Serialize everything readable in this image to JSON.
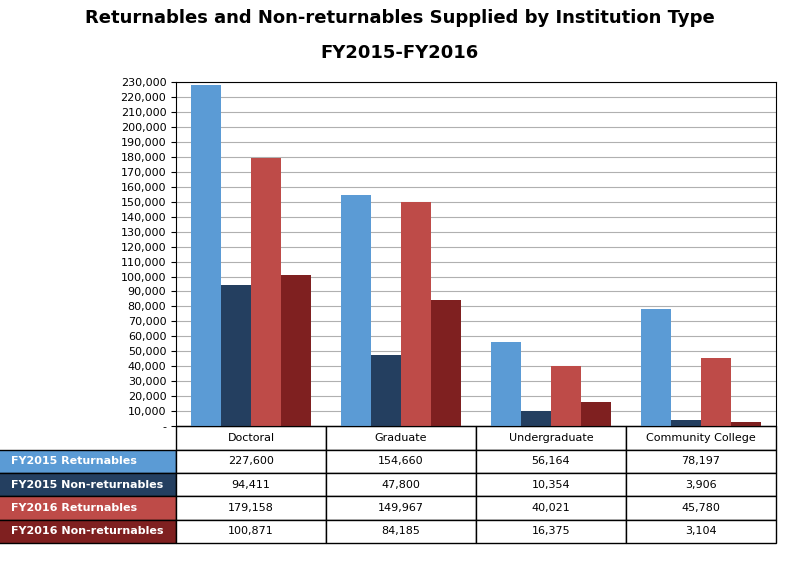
{
  "chart_data": {
    "type": "bar",
    "title": "Returnables and Non-returnables Supplied by Institution Type",
    "subtitle": "FY2015-FY2016",
    "categories": [
      "Doctoral",
      "Graduate",
      "Undergraduate",
      "Community College"
    ],
    "series": [
      {
        "name": "FY2015 Returnables",
        "color": "#5B9BD5",
        "values": [
          227600,
          154660,
          56164,
          78197
        ],
        "value_labels": [
          "227,600",
          "154,660",
          "56,164",
          "78,197"
        ]
      },
      {
        "name": "FY2015 Non-returnables",
        "color": "#243F60",
        "values": [
          94411,
          47800,
          10354,
          3906
        ],
        "value_labels": [
          "94,411",
          "47,800",
          "10,354",
          "3,906"
        ]
      },
      {
        "name": "FY2016 Returnables",
        "color": "#BE4B48",
        "values": [
          179158,
          149967,
          40021,
          45780
        ],
        "value_labels": [
          "179,158",
          "149,967",
          "40,021",
          "45,780"
        ]
      },
      {
        "name": "FY2016 Non-returnables",
        "color": "#7F2020",
        "values": [
          100871,
          84185,
          16375,
          3104
        ],
        "value_labels": [
          "100,871",
          "84,185",
          "16,375",
          "3,104"
        ]
      }
    ],
    "ylim": [
      0,
      230000
    ],
    "yticks": [
      {
        "value": 0,
        "label": "-"
      },
      {
        "value": 10000,
        "label": "10,000"
      },
      {
        "value": 20000,
        "label": "20,000"
      },
      {
        "value": 30000,
        "label": "30,000"
      },
      {
        "value": 40000,
        "label": "40,000"
      },
      {
        "value": 50000,
        "label": "50,000"
      },
      {
        "value": 60000,
        "label": "60,000"
      },
      {
        "value": 70000,
        "label": "70,000"
      },
      {
        "value": 80000,
        "label": "80,000"
      },
      {
        "value": 90000,
        "label": "90,000"
      },
      {
        "value": 100000,
        "label": "100,000"
      },
      {
        "value": 110000,
        "label": "110,000"
      },
      {
        "value": 120000,
        "label": "120,000"
      },
      {
        "value": 130000,
        "label": "130,000"
      },
      {
        "value": 140000,
        "label": "140,000"
      },
      {
        "value": 150000,
        "label": "150,000"
      },
      {
        "value": 160000,
        "label": "160,000"
      },
      {
        "value": 170000,
        "label": "170,000"
      },
      {
        "value": 180000,
        "label": "180,000"
      },
      {
        "value": 190000,
        "label": "190,000"
      },
      {
        "value": 200000,
        "label": "200,000"
      },
      {
        "value": 210000,
        "label": "210,000"
      },
      {
        "value": 220000,
        "label": "220,000"
      },
      {
        "value": 230000,
        "label": "230,000"
      }
    ],
    "grid": true,
    "tick_labels": "y"
  }
}
